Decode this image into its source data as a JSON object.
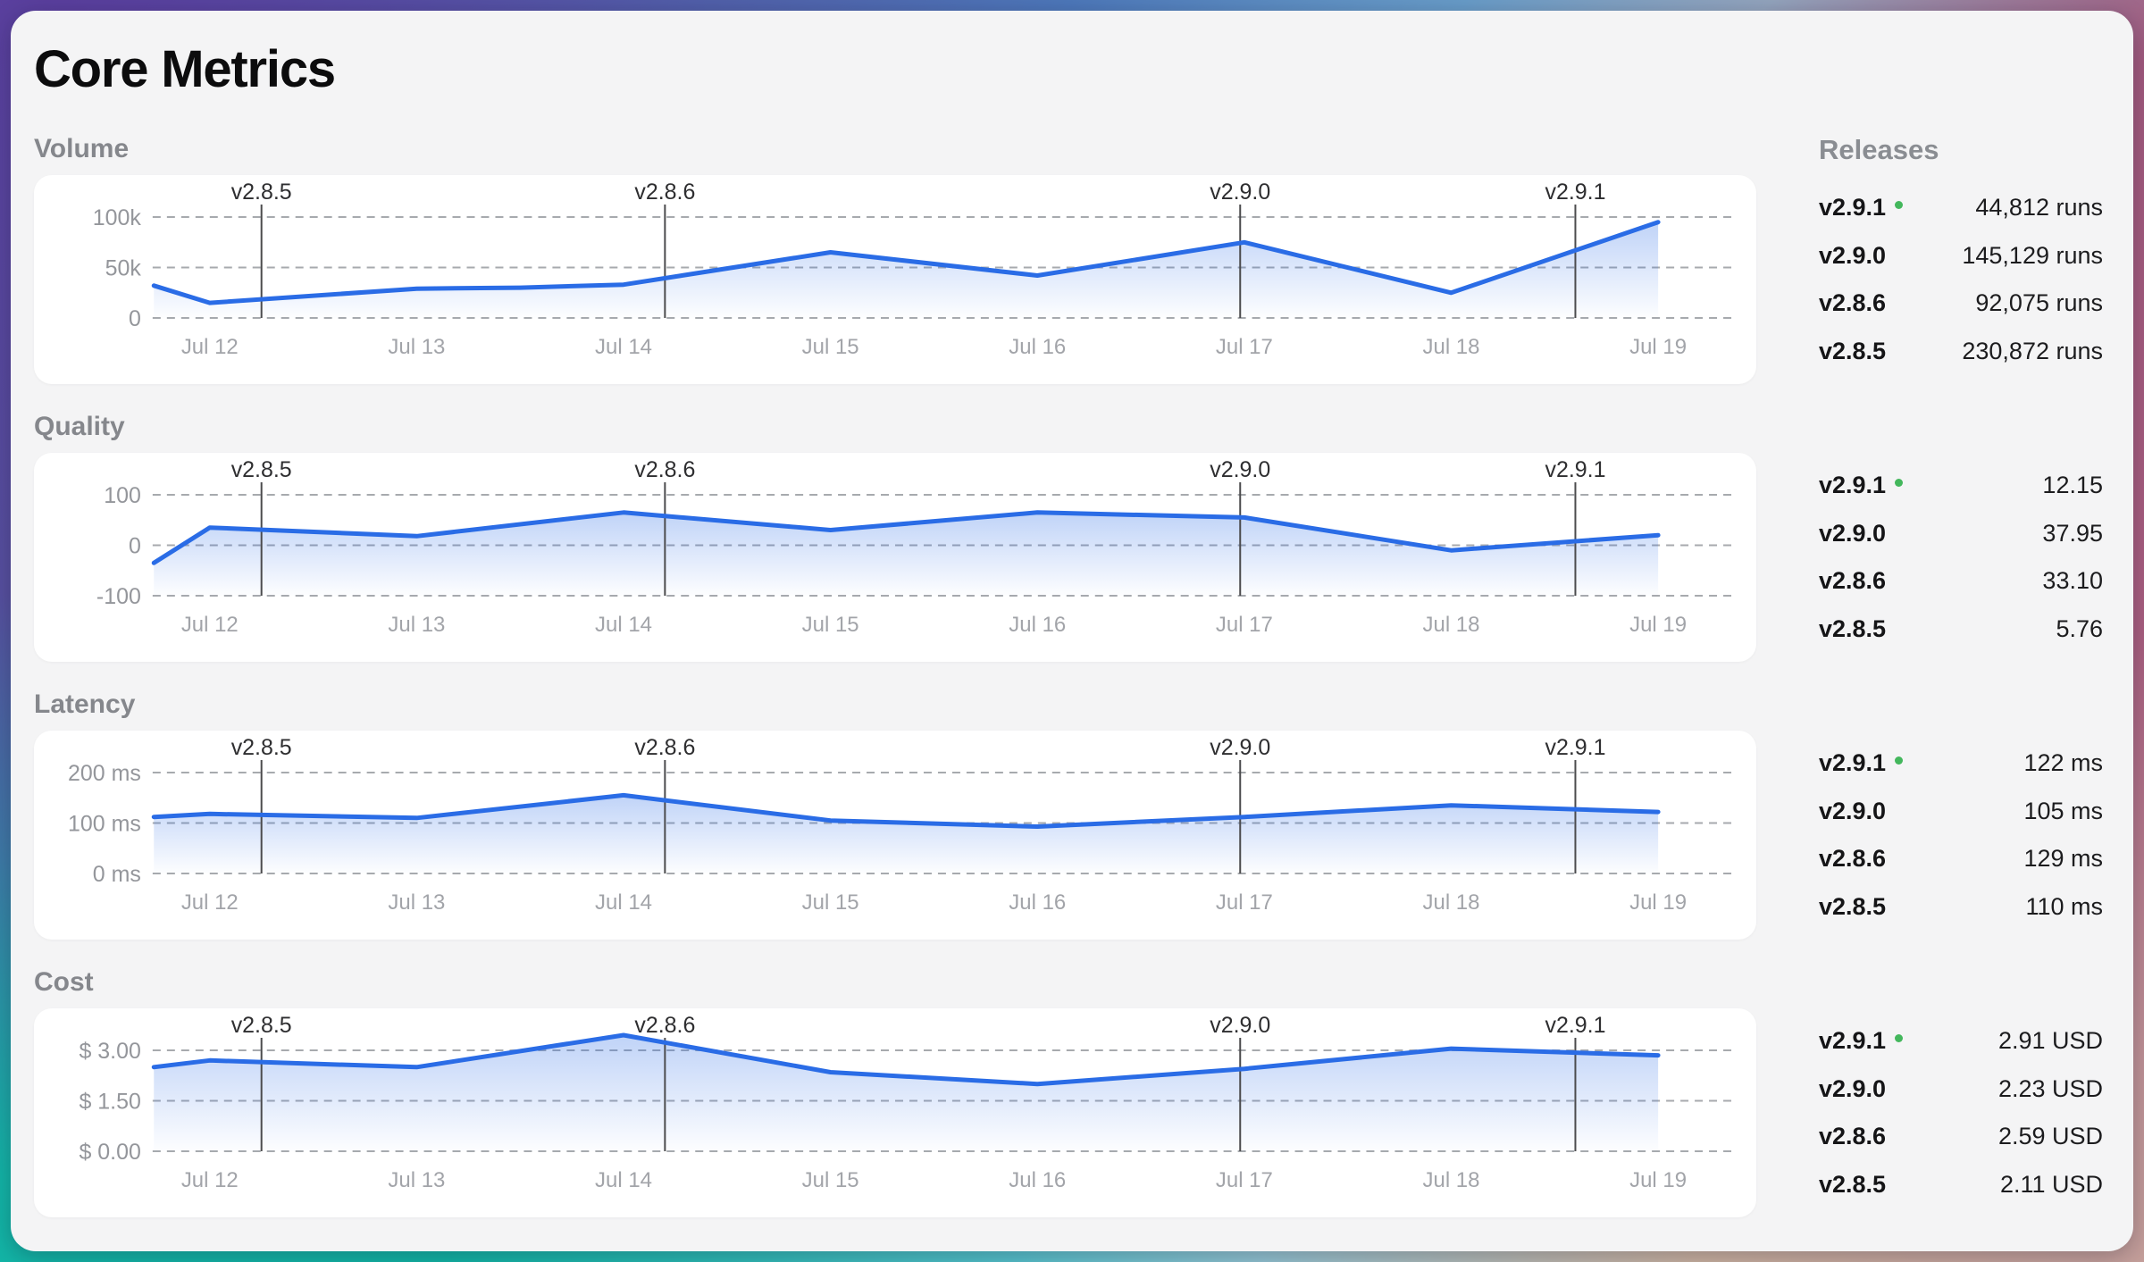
{
  "title": "Core Metrics",
  "sidebar": {
    "header": "Releases"
  },
  "colors": {
    "line": "#2a6ce6",
    "area_fill": "#2b6ce6",
    "grid": "#a7aaae",
    "marker_line": "#4b4b4d",
    "current_release_dot": "#43b75c",
    "card_bg": "#f4f4f5",
    "panel_bg": "#ffffff"
  },
  "release_markers": [
    {
      "label": "v2.8.5",
      "day": 0.25
    },
    {
      "label": "v2.8.6",
      "day": 2.2
    },
    {
      "label": "v2.9.0",
      "day": 4.98
    },
    {
      "label": "v2.9.1",
      "day": 6.6
    }
  ],
  "chart_data": [
    {
      "id": "volume",
      "type": "area",
      "title": "Volume",
      "x": [
        "Jul 12",
        "Jul 13",
        "Jul 14",
        "Jul 15",
        "Jul 16",
        "Jul 17",
        "Jul 18",
        "Jul 19"
      ],
      "y_ticks": [
        "100k",
        "50k",
        "0"
      ],
      "ylim": [
        0,
        100000
      ],
      "grid": true,
      "points": [
        {
          "day": -0.27,
          "value": 32000
        },
        {
          "day": 0,
          "value": 15000
        },
        {
          "day": 1,
          "value": 29000
        },
        {
          "day": 1.5,
          "value": 30000
        },
        {
          "day": 2,
          "value": 33000
        },
        {
          "day": 3,
          "value": 65000
        },
        {
          "day": 4,
          "value": 42000
        },
        {
          "day": 5,
          "value": 75000
        },
        {
          "day": 6,
          "value": 25000
        },
        {
          "day": 7,
          "value": 95000
        }
      ],
      "releases": [
        {
          "version": "v2.9.1",
          "current": true,
          "value": "44,812 runs"
        },
        {
          "version": "v2.9.0",
          "current": false,
          "value": "145,129 runs"
        },
        {
          "version": "v2.8.6",
          "current": false,
          "value": "92,075 runs"
        },
        {
          "version": "v2.8.5",
          "current": false,
          "value": "230,872 runs"
        }
      ]
    },
    {
      "id": "quality",
      "type": "area",
      "title": "Quality",
      "x": [
        "Jul 12",
        "Jul 13",
        "Jul 14",
        "Jul 15",
        "Jul 16",
        "Jul 17",
        "Jul 18",
        "Jul 19"
      ],
      "y_ticks": [
        "100",
        "0",
        "-100"
      ],
      "ylim": [
        -100,
        100
      ],
      "grid": true,
      "points": [
        {
          "day": -0.27,
          "value": -35
        },
        {
          "day": 0,
          "value": 35
        },
        {
          "day": 1,
          "value": 18
        },
        {
          "day": 2,
          "value": 65
        },
        {
          "day": 3,
          "value": 30
        },
        {
          "day": 4,
          "value": 65
        },
        {
          "day": 5,
          "value": 55
        },
        {
          "day": 6,
          "value": -10
        },
        {
          "day": 7,
          "value": 20
        }
      ],
      "releases": [
        {
          "version": "v2.9.1",
          "current": true,
          "value": "12.15"
        },
        {
          "version": "v2.9.0",
          "current": false,
          "value": "37.95"
        },
        {
          "version": "v2.8.6",
          "current": false,
          "value": "33.10"
        },
        {
          "version": "v2.8.5",
          "current": false,
          "value": "5.76"
        }
      ]
    },
    {
      "id": "latency",
      "type": "area",
      "title": "Latency",
      "x": [
        "Jul 12",
        "Jul 13",
        "Jul 14",
        "Jul 15",
        "Jul 16",
        "Jul 17",
        "Jul 18",
        "Jul 19"
      ],
      "y_ticks": [
        "200 ms",
        "100 ms",
        "0 ms"
      ],
      "ylim": [
        0,
        200
      ],
      "grid": true,
      "points": [
        {
          "day": -0.27,
          "value": 112
        },
        {
          "day": 0,
          "value": 118
        },
        {
          "day": 1,
          "value": 110
        },
        {
          "day": 2,
          "value": 155
        },
        {
          "day": 3,
          "value": 105
        },
        {
          "day": 4,
          "value": 93
        },
        {
          "day": 5,
          "value": 112
        },
        {
          "day": 6,
          "value": 135
        },
        {
          "day": 7,
          "value": 122
        }
      ],
      "releases": [
        {
          "version": "v2.9.1",
          "current": true,
          "value": "122 ms"
        },
        {
          "version": "v2.9.0",
          "current": false,
          "value": "105 ms"
        },
        {
          "version": "v2.8.6",
          "current": false,
          "value": "129 ms"
        },
        {
          "version": "v2.8.5",
          "current": false,
          "value": "110 ms"
        }
      ]
    },
    {
      "id": "cost",
      "type": "area",
      "title": "Cost",
      "x": [
        "Jul 12",
        "Jul 13",
        "Jul 14",
        "Jul 15",
        "Jul 16",
        "Jul 17",
        "Jul 18",
        "Jul 19"
      ],
      "y_ticks": [
        "$ 3.00",
        "$ 1.50",
        "$ 0.00"
      ],
      "ylim": [
        0,
        3
      ],
      "grid": true,
      "points": [
        {
          "day": -0.27,
          "value": 2.5
        },
        {
          "day": 0,
          "value": 2.7
        },
        {
          "day": 1,
          "value": 2.5
        },
        {
          "day": 2,
          "value": 3.45
        },
        {
          "day": 3,
          "value": 2.35
        },
        {
          "day": 4,
          "value": 2.0
        },
        {
          "day": 5,
          "value": 2.45
        },
        {
          "day": 6,
          "value": 3.05
        },
        {
          "day": 7,
          "value": 2.85
        }
      ],
      "releases": [
        {
          "version": "v2.9.1",
          "current": true,
          "value": "2.91 USD"
        },
        {
          "version": "v2.9.0",
          "current": false,
          "value": "2.23 USD"
        },
        {
          "version": "v2.8.6",
          "current": false,
          "value": "2.59 USD"
        },
        {
          "version": "v2.8.5",
          "current": false,
          "value": "2.11 USD"
        }
      ]
    }
  ]
}
